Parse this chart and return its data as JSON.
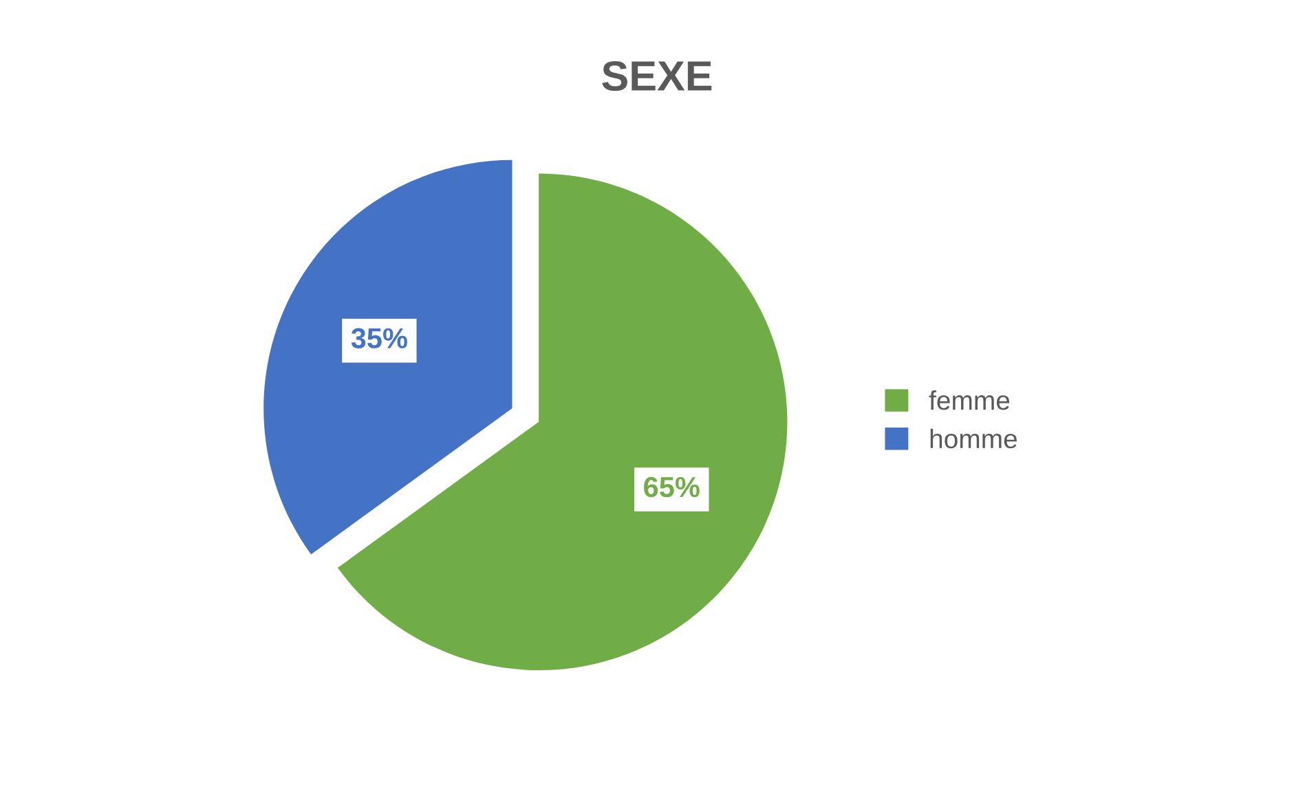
{
  "chart_data": {
    "type": "pie",
    "title": "SEXE",
    "categories": [
      "femme",
      "homme"
    ],
    "values": [
      65,
      35
    ],
    "colors": [
      "#70ad47",
      "#4472c4"
    ],
    "value_labels": [
      "65%",
      "35%"
    ],
    "legend": "right"
  }
}
